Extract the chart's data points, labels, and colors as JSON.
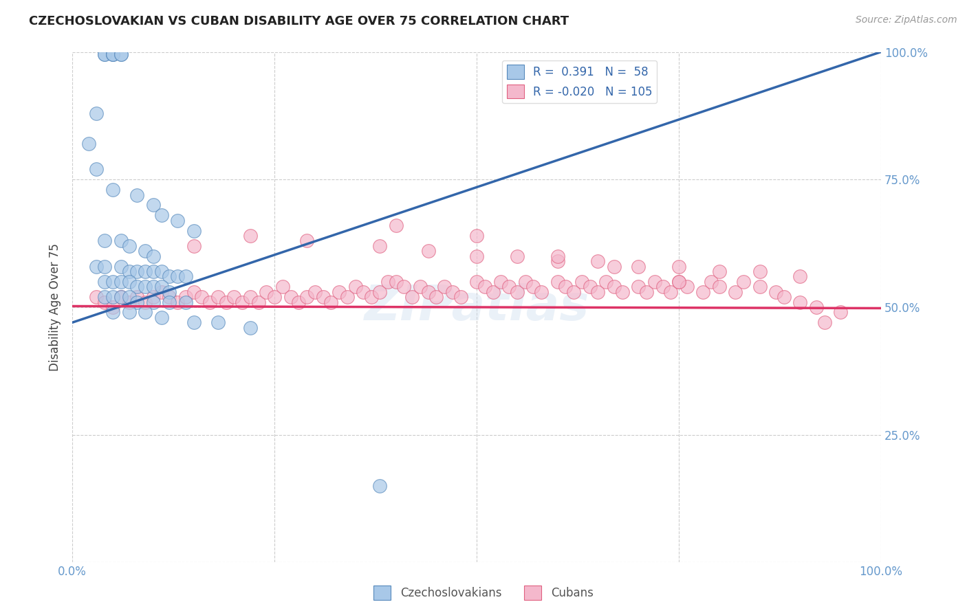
{
  "title": "CZECHOSLOVAKIAN VS CUBAN DISABILITY AGE OVER 75 CORRELATION CHART",
  "source": "Source: ZipAtlas.com",
  "ylabel": "Disability Age Over 75",
  "blue_R": 0.391,
  "blue_N": 58,
  "pink_R": -0.02,
  "pink_N": 105,
  "blue_fill_color": "#a8c8e8",
  "pink_fill_color": "#f4b8cc",
  "blue_edge_color": "#5588bb",
  "pink_edge_color": "#e06080",
  "blue_line_color": "#3366aa",
  "pink_line_color": "#dd3366",
  "background_color": "#ffffff",
  "watermark": "ZIPatlas",
  "title_color": "#222222",
  "axis_label_color": "#444444",
  "tick_color": "#6699cc",
  "legend_label_blue": "Czechoslovakians",
  "legend_label_pink": "Cubans",
  "blue_scatter_x": [
    0.04,
    0.04,
    0.05,
    0.05,
    0.05,
    0.06,
    0.06,
    0.02,
    0.03,
    0.03,
    0.05,
    0.08,
    0.1,
    0.11,
    0.13,
    0.15,
    0.04,
    0.06,
    0.07,
    0.09,
    0.1,
    0.03,
    0.04,
    0.06,
    0.07,
    0.08,
    0.09,
    0.1,
    0.11,
    0.12,
    0.13,
    0.14,
    0.04,
    0.05,
    0.06,
    0.07,
    0.08,
    0.09,
    0.1,
    0.11,
    0.12,
    0.04,
    0.05,
    0.06,
    0.07,
    0.08,
    0.1,
    0.12,
    0.14,
    0.05,
    0.07,
    0.09,
    0.11,
    0.15,
    0.18,
    0.22,
    0.38
  ],
  "blue_scatter_y": [
    0.995,
    0.995,
    0.995,
    0.995,
    0.995,
    0.995,
    0.995,
    0.82,
    0.88,
    0.77,
    0.73,
    0.72,
    0.7,
    0.68,
    0.67,
    0.65,
    0.63,
    0.63,
    0.62,
    0.61,
    0.6,
    0.58,
    0.58,
    0.58,
    0.57,
    0.57,
    0.57,
    0.57,
    0.57,
    0.56,
    0.56,
    0.56,
    0.55,
    0.55,
    0.55,
    0.55,
    0.54,
    0.54,
    0.54,
    0.54,
    0.53,
    0.52,
    0.52,
    0.52,
    0.52,
    0.51,
    0.51,
    0.51,
    0.51,
    0.49,
    0.49,
    0.49,
    0.48,
    0.47,
    0.47,
    0.46,
    0.15
  ],
  "pink_scatter_x": [
    0.03,
    0.04,
    0.05,
    0.06,
    0.07,
    0.08,
    0.09,
    0.1,
    0.11,
    0.12,
    0.13,
    0.14,
    0.15,
    0.16,
    0.17,
    0.18,
    0.19,
    0.2,
    0.21,
    0.22,
    0.23,
    0.24,
    0.25,
    0.26,
    0.27,
    0.28,
    0.29,
    0.3,
    0.31,
    0.32,
    0.33,
    0.34,
    0.35,
    0.36,
    0.37,
    0.38,
    0.39,
    0.4,
    0.41,
    0.42,
    0.43,
    0.44,
    0.45,
    0.46,
    0.47,
    0.48,
    0.5,
    0.51,
    0.52,
    0.53,
    0.54,
    0.55,
    0.56,
    0.57,
    0.58,
    0.6,
    0.61,
    0.62,
    0.63,
    0.64,
    0.65,
    0.66,
    0.67,
    0.68,
    0.7,
    0.71,
    0.72,
    0.73,
    0.74,
    0.75,
    0.76,
    0.78,
    0.79,
    0.8,
    0.82,
    0.83,
    0.85,
    0.87,
    0.88,
    0.9,
    0.92,
    0.15,
    0.22,
    0.29,
    0.38,
    0.44,
    0.5,
    0.55,
    0.6,
    0.65,
    0.7,
    0.75,
    0.8,
    0.85,
    0.9,
    0.93,
    0.4,
    0.5,
    0.6,
    0.67,
    0.75,
    0.95
  ],
  "pink_scatter_y": [
    0.52,
    0.51,
    0.5,
    0.52,
    0.51,
    0.52,
    0.51,
    0.52,
    0.53,
    0.52,
    0.51,
    0.52,
    0.53,
    0.52,
    0.51,
    0.52,
    0.51,
    0.52,
    0.51,
    0.52,
    0.51,
    0.53,
    0.52,
    0.54,
    0.52,
    0.51,
    0.52,
    0.53,
    0.52,
    0.51,
    0.53,
    0.52,
    0.54,
    0.53,
    0.52,
    0.53,
    0.55,
    0.55,
    0.54,
    0.52,
    0.54,
    0.53,
    0.52,
    0.54,
    0.53,
    0.52,
    0.55,
    0.54,
    0.53,
    0.55,
    0.54,
    0.53,
    0.55,
    0.54,
    0.53,
    0.55,
    0.54,
    0.53,
    0.55,
    0.54,
    0.53,
    0.55,
    0.54,
    0.53,
    0.54,
    0.53,
    0.55,
    0.54,
    0.53,
    0.55,
    0.54,
    0.53,
    0.55,
    0.54,
    0.53,
    0.55,
    0.54,
    0.53,
    0.52,
    0.51,
    0.5,
    0.62,
    0.64,
    0.63,
    0.62,
    0.61,
    0.6,
    0.6,
    0.59,
    0.59,
    0.58,
    0.58,
    0.57,
    0.57,
    0.56,
    0.47,
    0.66,
    0.64,
    0.6,
    0.58,
    0.55,
    0.49
  ],
  "xlim": [
    0.0,
    1.0
  ],
  "ylim": [
    0.0,
    1.0
  ],
  "xticks": [
    0.0,
    0.25,
    0.5,
    0.75,
    1.0
  ],
  "xtick_labels": [
    "0.0%",
    "",
    "",
    "",
    "100.0%"
  ],
  "yticks": [
    0.0,
    0.25,
    0.5,
    0.75,
    1.0
  ],
  "right_ytick_labels": [
    "",
    "25.0%",
    "50.0%",
    "75.0%",
    "100.0%"
  ],
  "blue_trend_y_start": 0.47,
  "blue_trend_y_end": 1.0,
  "pink_trend_y_start": 0.502,
  "pink_trend_y_end": 0.498
}
